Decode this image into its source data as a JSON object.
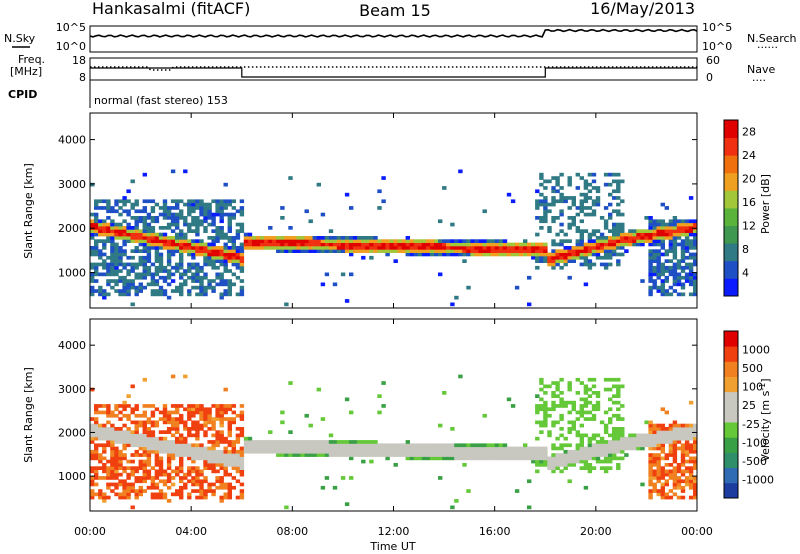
{
  "header": {
    "station": "Hankasalmi (fitACF)",
    "beam": "Beam 15",
    "date": "16/May/2013"
  },
  "top_panels": {
    "nsky_label": "N.Sky",
    "nsearch_label": "N.Search",
    "nsearch_marker": "......",
    "count_axis_ticks": [
      "10^5",
      "10^0"
    ],
    "freq_label": "Freq.",
    "freq_unit": "[MHz]",
    "freq_ticks": [
      "18",
      "8"
    ],
    "nave_label": "Nave",
    "nave_marker": "....",
    "nave_ticks": [
      "60",
      "0"
    ],
    "cpid_label": "CPID",
    "cpid_text": "normal (fast stereo) 153"
  },
  "chart_data": [
    {
      "type": "heatmap",
      "name": "power-panel",
      "ylabel": "Slant Range [km]",
      "xlabel": "",
      "ylim": [
        200,
        4600
      ],
      "xlim_hours": [
        0,
        24
      ],
      "y_ticks": [
        "1000",
        "2000",
        "3000",
        "4000"
      ],
      "colorbar": {
        "label": "Power [dB]",
        "ticks": [
          "4",
          "8",
          "12",
          "16",
          "20",
          "24",
          "28"
        ],
        "colors": [
          "#0a1cff",
          "#1f4fc4",
          "#2f7a84",
          "#3e9850",
          "#5ab43c",
          "#a2c83a",
          "#f0a020",
          "#f07010",
          "#f03010",
          "#e00000"
        ],
        "range": [
          0,
          30
        ]
      }
    },
    {
      "type": "heatmap",
      "name": "velocity-panel",
      "ylabel": "Slant Range [km]",
      "xlabel": "Time UT",
      "ylim": [
        200,
        4600
      ],
      "xlim_hours": [
        0,
        24
      ],
      "y_ticks": [
        "1000",
        "2000",
        "3000",
        "4000"
      ],
      "x_ticks": [
        "00:00",
        "04:00",
        "08:00",
        "12:00",
        "16:00",
        "20:00",
        "00:00"
      ],
      "colorbar": {
        "label": "Velocity [m s",
        "label_sup": "-1",
        "label_end": "]",
        "ticks": [
          "1000",
          "500",
          "100",
          "25",
          "-25",
          "-100",
          "-500",
          "-1000"
        ],
        "colors": [
          "#1c3ca0",
          "#2f6ab4",
          "#2f8f6a",
          "#3aa046",
          "#64c838",
          "#c8c8c0",
          "#c8c8c0",
          "#f0a030",
          "#f08020",
          "#f04010",
          "#e00000"
        ]
      }
    }
  ]
}
